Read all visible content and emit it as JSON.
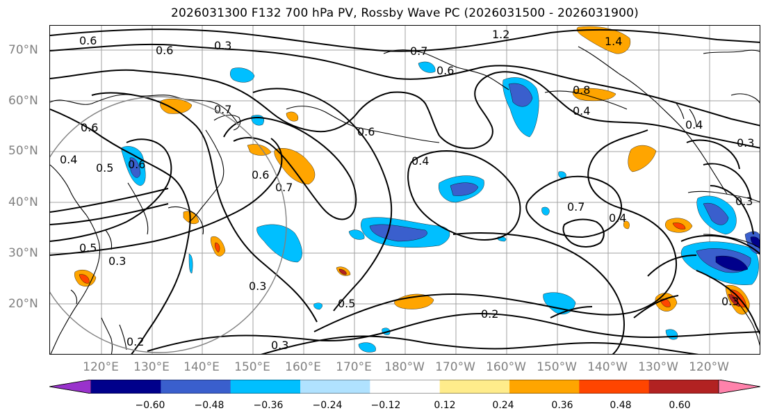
{
  "title": "2026031300 F132 700 hPa PV, Rossby Wave PC (2026031500 - 2026031900)",
  "lat_labels": [
    "70°N",
    "60°N",
    "50°N",
    "40°N",
    "30°N",
    "20°N"
  ],
  "lon_labels": [
    "120°E",
    "130°E",
    "140°E",
    "150°E",
    "160°E",
    "170°E",
    "180°W",
    "170°W",
    "160°W",
    "150°W",
    "140°W",
    "130°W",
    "120°W"
  ],
  "contour_labels": [
    "0.6",
    "0.6",
    "0.3",
    "1.2",
    "1.4",
    "0.7",
    "0.6",
    "0.8",
    "0.4",
    "0.4",
    "0.3",
    "0.7",
    "0.6",
    "0.4",
    "0.5",
    "0.6",
    "0.6",
    "0.7",
    "0.4",
    "0.6",
    "0.7",
    "0.4",
    "0.5",
    "0.3",
    "0.3",
    "0.5",
    "0.2",
    "0.3",
    "0.2",
    "0.3",
    "0.3"
  ],
  "colorbar": {
    "ticks": [
      "−0.60",
      "−0.48",
      "−0.36",
      "−0.24",
      "−0.12",
      "0.12",
      "0.24",
      "0.36",
      "0.48",
      "0.60"
    ],
    "colors": [
      "#9932cc",
      "#00008b",
      "#3a5fcd",
      "#00bfff",
      "#b0e2ff",
      "#ffffff",
      "#ffec8b",
      "#ffa500",
      "#ff4500",
      "#b22222",
      "#ff82ab"
    ]
  },
  "colors": {
    "ocean": "#ffffff",
    "grid": "#a0a0a0",
    "contour": "#000000",
    "tick_text": "#808080"
  }
}
